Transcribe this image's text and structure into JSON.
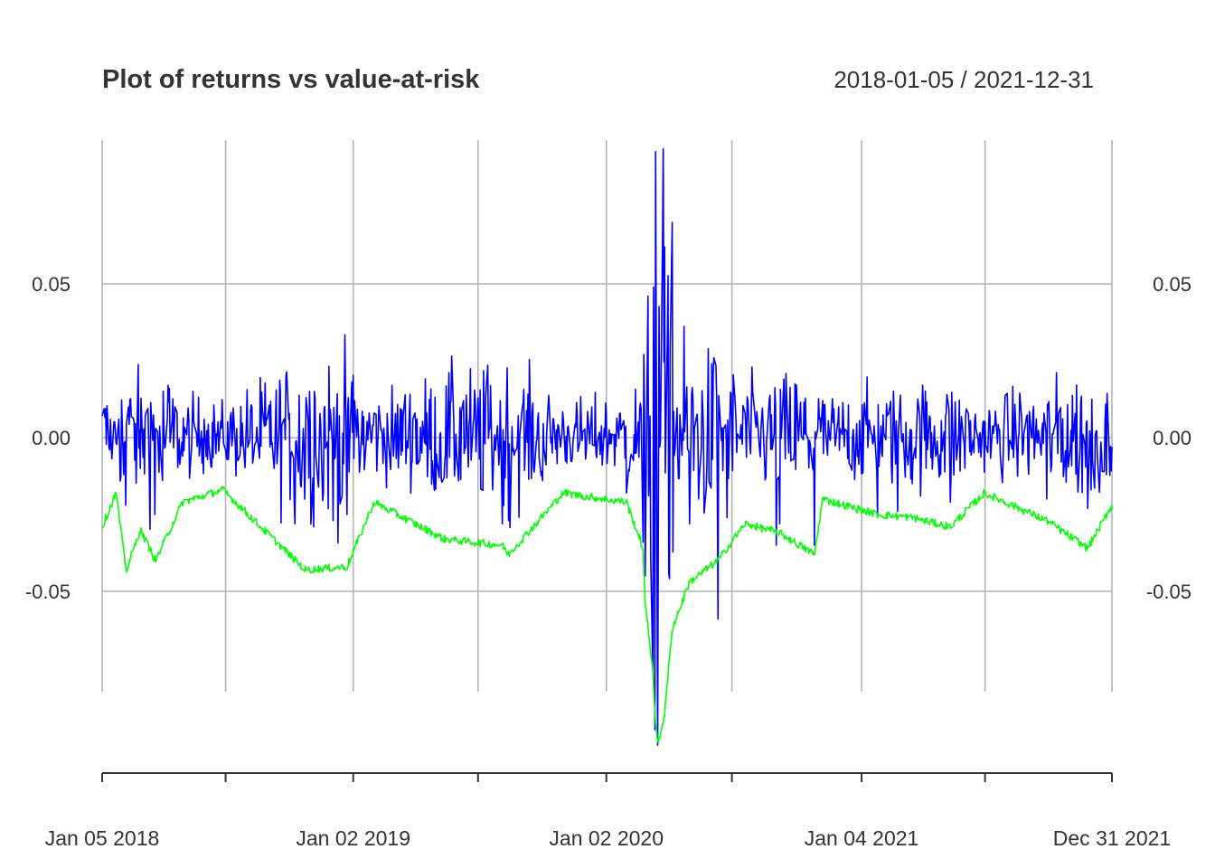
{
  "chart_data": {
    "type": "line",
    "title": "Plot of returns vs value-at-risk",
    "date_range_label": "2018-01-05 / 2021-12-31",
    "x_range": [
      "2018-01-05",
      "2021-12-31"
    ],
    "ylim": [
      -0.1,
      0.075
    ],
    "y_ticks": [
      {
        "value": 0.05,
        "label": "0.05"
      },
      {
        "value": 0.0,
        "label": "0.00"
      },
      {
        "value": -0.05,
        "label": "-0.05"
      }
    ],
    "x_tick_labels": [
      {
        "date": "2018-01-05",
        "label": "Jan 05 2018"
      },
      {
        "date": "2019-01-02",
        "label": "Jan 02 2019"
      },
      {
        "date": "2020-01-02",
        "label": "Jan 02 2020"
      },
      {
        "date": "2021-01-04",
        "label": "Jan 04 2021"
      },
      {
        "date": "2021-12-31",
        "label": "Dec 31 2021"
      }
    ],
    "x_minor_ticks": [
      "2018-07-02",
      "2019-07-01",
      "2020-07-01",
      "2021-07-01"
    ],
    "grid": true,
    "series": [
      {
        "key": "returns",
        "color": "#0000ff",
        "points": [
          [
            "2018-01-05",
            0.007
          ],
          [
            "2018-01-16",
            -0.004
          ],
          [
            "2018-01-29",
            0.006
          ],
          [
            "2018-02-05",
            -0.012
          ],
          [
            "2018-02-08",
            -0.022
          ],
          [
            "2018-02-12",
            0.01
          ],
          [
            "2018-02-20",
            0.005
          ],
          [
            "2018-03-01",
            -0.01
          ],
          [
            "2018-03-09",
            0.008
          ],
          [
            "2018-03-22",
            -0.025
          ],
          [
            "2018-04-02",
            -0.014
          ],
          [
            "2018-04-12",
            0.016
          ],
          [
            "2018-05-01",
            -0.006
          ],
          [
            "2018-06-01",
            0.006
          ],
          [
            "2018-07-02",
            -0.004
          ],
          [
            "2018-08-01",
            0.005
          ],
          [
            "2018-09-04",
            -0.003
          ],
          [
            "2018-10-01",
            0.006
          ],
          [
            "2018-10-10",
            -0.028
          ],
          [
            "2018-10-24",
            -0.02
          ],
          [
            "2018-10-26",
            0.013
          ],
          [
            "2018-11-07",
            0.015
          ],
          [
            "2018-11-20",
            -0.018
          ],
          [
            "2018-12-04",
            -0.027
          ],
          [
            "2018-12-17",
            -0.019
          ],
          [
            "2018-12-24",
            -0.025
          ],
          [
            "2018-12-26",
            0.013
          ],
          [
            "2019-01-04",
            0.012
          ],
          [
            "2019-02-01",
            0.008
          ],
          [
            "2019-03-01",
            -0.006
          ],
          [
            "2019-04-01",
            0.008
          ],
          [
            "2019-05-06",
            -0.013
          ],
          [
            "2019-05-13",
            -0.013
          ],
          [
            "2019-06-10",
            0.012
          ],
          [
            "2019-08-05",
            -0.028
          ],
          [
            "2019-08-14",
            -0.027
          ],
          [
            "2019-09-03",
            0.01
          ],
          [
            "2019-10-02",
            -0.014
          ],
          [
            "2019-11-01",
            0.006
          ],
          [
            "2019-12-03",
            -0.007
          ],
          [
            "2020-01-02",
            0.008
          ],
          [
            "2020-01-31",
            -0.018
          ],
          [
            "2020-02-24",
            -0.034
          ],
          [
            "2020-02-27",
            -0.045
          ],
          [
            "2020-03-02",
            0.046
          ],
          [
            "2020-03-09",
            -0.076
          ],
          [
            "2020-03-10",
            0.049
          ],
          [
            "2020-03-12",
            -0.095
          ],
          [
            "2020-03-13",
            0.093
          ],
          [
            "2020-03-16",
            -0.12
          ],
          [
            "2020-03-24",
            0.094
          ],
          [
            "2020-03-26",
            0.062
          ],
          [
            "2020-04-01",
            -0.044
          ],
          [
            "2020-04-06",
            0.07
          ],
          [
            "2020-05-01",
            -0.028
          ],
          [
            "2020-06-05",
            0.026
          ],
          [
            "2020-06-11",
            -0.059
          ],
          [
            "2020-06-24",
            -0.026
          ],
          [
            "2020-07-20",
            0.008
          ],
          [
            "2020-09-03",
            -0.035
          ],
          [
            "2020-09-08",
            -0.028
          ],
          [
            "2020-10-28",
            -0.035
          ],
          [
            "2020-11-09",
            0.012
          ],
          [
            "2021-01-27",
            -0.026
          ],
          [
            "2021-02-25",
            -0.024
          ],
          [
            "2021-03-18",
            -0.015
          ],
          [
            "2021-05-12",
            -0.021
          ],
          [
            "2021-09-28",
            -0.02
          ],
          [
            "2021-11-26",
            -0.023
          ],
          [
            "2021-12-01",
            -0.017
          ],
          [
            "2021-12-20",
            -0.011
          ],
          [
            "2021-12-31",
            -0.003
          ]
        ]
      },
      {
        "key": "var",
        "color": "#00ff00",
        "points": [
          [
            "2018-01-05",
            -0.029
          ],
          [
            "2018-01-25",
            -0.018
          ],
          [
            "2018-02-06",
            -0.039
          ],
          [
            "2018-02-09",
            -0.043
          ],
          [
            "2018-03-01",
            -0.03
          ],
          [
            "2018-03-23",
            -0.04
          ],
          [
            "2018-05-01",
            -0.021
          ],
          [
            "2018-06-28",
            -0.017
          ],
          [
            "2018-10-11",
            -0.04
          ],
          [
            "2018-10-25",
            -0.043
          ],
          [
            "2018-12-24",
            -0.042
          ],
          [
            "2019-02-01",
            -0.021
          ],
          [
            "2019-05-13",
            -0.033
          ],
          [
            "2019-08-05",
            -0.035
          ],
          [
            "2019-08-14",
            -0.038
          ],
          [
            "2019-11-01",
            -0.018
          ],
          [
            "2020-01-31",
            -0.021
          ],
          [
            "2020-02-24",
            -0.036
          ],
          [
            "2020-02-27",
            -0.055
          ],
          [
            "2020-03-09",
            -0.075
          ],
          [
            "2020-03-12",
            -0.09
          ],
          [
            "2020-03-16",
            -0.1
          ],
          [
            "2020-03-26",
            -0.09
          ],
          [
            "2020-04-06",
            -0.062
          ],
          [
            "2020-05-01",
            -0.047
          ],
          [
            "2020-06-11",
            -0.04
          ],
          [
            "2020-07-20",
            -0.028
          ],
          [
            "2020-09-08",
            -0.031
          ],
          [
            "2020-10-28",
            -0.038
          ],
          [
            "2020-11-09",
            -0.02
          ],
          [
            "2021-01-27",
            -0.025
          ],
          [
            "2021-03-18",
            -0.026
          ],
          [
            "2021-05-12",
            -0.029
          ],
          [
            "2021-06-30",
            -0.018
          ],
          [
            "2021-09-28",
            -0.027
          ],
          [
            "2021-11-26",
            -0.036
          ],
          [
            "2021-12-31",
            -0.022
          ]
        ]
      }
    ]
  }
}
